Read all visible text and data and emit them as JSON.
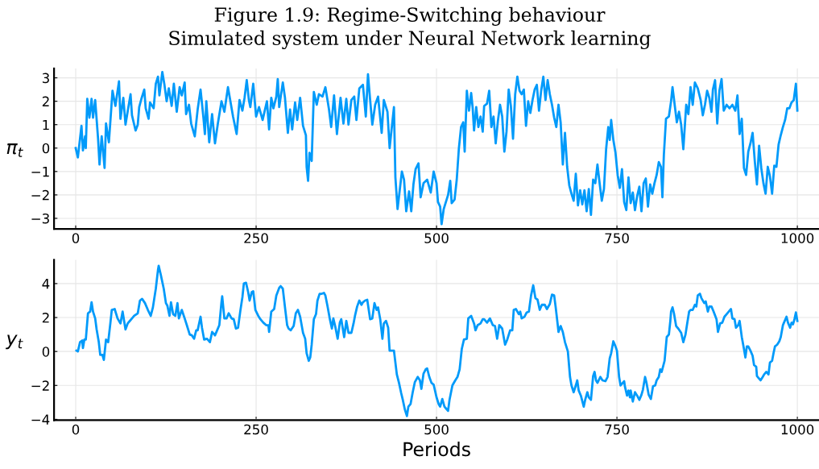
{
  "chart_data": [
    {
      "type": "line",
      "title": "Figure 1.9: Regime-Switching behaviour",
      "subtitle": "Simulated system under Neural Network learning",
      "ylabel": "π$_{t}$",
      "grid": true,
      "legend": false,
      "xlim": [
        -30,
        1030
      ],
      "xticks": [
        0,
        250,
        500,
        750,
        1000
      ],
      "ylim": [
        -3.45,
        3.4
      ],
      "yticks": [
        {
          "value": -3,
          "label": "−3"
        },
        {
          "value": -2,
          "label": "−2"
        },
        {
          "value": -1,
          "label": "−1"
        },
        0,
        1,
        2,
        3
      ],
      "series": [
        {
          "color": "#009afa",
          "x": [
            0,
            3,
            8,
            10,
            13,
            14,
            16,
            19,
            22,
            24,
            27,
            31,
            33,
            36,
            40,
            42,
            46,
            51,
            55,
            60,
            62,
            66,
            69,
            73,
            76,
            78,
            83,
            86,
            88,
            91,
            95,
            97,
            101,
            103,
            108,
            111,
            114,
            116,
            120,
            123,
            126,
            129,
            133,
            136,
            140,
            144,
            147,
            151,
            153,
            157,
            160,
            165,
            169,
            173,
            177,
            179,
            181,
            185,
            189,
            193,
            197,
            202,
            206,
            211,
            218,
            223,
            227,
            231,
            234,
            237,
            240,
            242,
            246,
            250,
            254,
            259,
            265,
            268,
            271,
            274,
            278,
            280,
            282,
            287,
            290,
            294,
            297,
            300,
            304,
            307,
            311,
            315,
            319,
            320,
            322,
            324,
            327,
            330,
            334,
            337,
            342,
            346,
            351,
            354,
            358,
            362,
            367,
            371,
            375,
            378,
            382,
            386,
            389,
            393,
            398,
            402,
            405,
            408,
            411,
            415,
            419,
            424,
            427,
            432,
            435,
            441,
            443,
            446,
            449,
            452,
            455,
            458,
            462,
            465,
            468,
            471,
            475,
            478,
            482,
            487,
            492,
            496,
            500,
            502,
            505,
            507,
            510,
            513,
            516,
            519,
            521,
            525,
            528,
            531,
            534,
            537,
            539,
            542,
            545,
            548,
            550,
            552,
            555,
            558,
            561,
            564,
            566,
            570,
            573,
            576,
            579,
            582,
            585,
            588,
            591,
            594,
            597,
            600,
            603,
            606,
            609,
            612,
            615,
            618,
            621,
            624,
            627,
            630,
            633,
            636,
            639,
            642,
            645,
            648,
            651,
            654,
            657,
            660,
            663,
            666,
            669,
            672,
            675,
            678,
            681,
            684,
            687,
            690,
            693,
            696,
            699,
            702,
            705,
            708,
            711,
            714,
            717,
            720,
            723,
            726,
            729,
            732,
            735,
            738,
            740,
            742,
            745,
            748,
            751,
            754,
            757,
            760,
            763,
            766,
            769,
            772,
            775,
            778,
            781,
            784,
            787,
            790,
            793,
            796,
            799,
            802,
            805,
            808,
            811,
            813,
            815,
            818,
            822,
            825,
            827,
            830,
            833,
            836,
            839,
            842,
            846,
            849,
            852,
            855,
            858,
            862,
            866,
            869,
            872,
            875,
            878,
            881,
            883,
            886,
            889,
            892,
            895,
            898,
            902,
            906,
            910,
            914,
            917,
            920,
            923,
            926,
            929,
            932,
            935,
            938,
            941,
            944,
            947,
            950,
            953,
            956,
            959,
            962,
            965,
            968,
            971,
            974,
            977,
            980,
            983,
            986,
            989,
            992,
            995,
            998,
            1000
          ],
          "values": [
            0.0,
            -0.4,
            0.95,
            -0.1,
            0.5,
            0.0,
            2.1,
            1.3,
            2.1,
            1.3,
            2.05,
            0.4,
            -0.7,
            0.5,
            -0.85,
            1.05,
            0.25,
            2.45,
            1.8,
            2.85,
            1.25,
            2.15,
            1.0,
            1.75,
            2.3,
            1.4,
            0.75,
            1.0,
            1.75,
            2.1,
            2.5,
            1.7,
            1.25,
            1.95,
            1.7,
            2.75,
            3.05,
            2.25,
            3.25,
            2.7,
            2.0,
            2.55,
            1.8,
            2.75,
            1.55,
            2.6,
            2.25,
            2.8,
            1.45,
            1.85,
            1.05,
            0.5,
            1.65,
            2.5,
            1.3,
            0.6,
            2.0,
            0.25,
            1.45,
            0.2,
            1.05,
            2.0,
            1.55,
            2.6,
            1.35,
            0.6,
            2.05,
            1.6,
            2.15,
            2.9,
            2.05,
            1.75,
            2.75,
            1.35,
            1.75,
            1.2,
            2.0,
            0.8,
            2.15,
            1.7,
            2.2,
            2.95,
            1.75,
            2.8,
            2.15,
            0.65,
            1.65,
            0.8,
            1.95,
            1.2,
            2.15,
            0.95,
            0.55,
            -0.8,
            -1.4,
            -0.2,
            -0.55,
            2.4,
            1.85,
            2.3,
            2.2,
            2.6,
            1.65,
            0.9,
            2.25,
            0.6,
            2.15,
            1.05,
            2.1,
            1.0,
            2.05,
            2.2,
            1.2,
            2.55,
            2.7,
            1.35,
            3.15,
            2.05,
            1.0,
            1.85,
            2.2,
            0.65,
            2.05,
            1.55,
            0.0,
            1.75,
            -1.25,
            -2.6,
            -1.8,
            -1.0,
            -1.35,
            -2.7,
            -1.85,
            -2.7,
            -1.55,
            -0.9,
            -0.65,
            -2.1,
            -1.5,
            -1.35,
            -1.9,
            -1.0,
            -1.5,
            -2.3,
            -2.5,
            -3.25,
            -2.6,
            -2.3,
            -2.0,
            -1.4,
            -2.35,
            -2.2,
            -1.35,
            0.0,
            0.9,
            1.1,
            -0.15,
            2.45,
            1.6,
            2.35,
            1.75,
            0.75,
            1.75,
            0.9,
            1.35,
            0.7,
            1.8,
            1.9,
            2.45,
            0.9,
            1.35,
            0.2,
            1.15,
            1.85,
            1.35,
            -0.15,
            0.7,
            2.5,
            1.8,
            0.4,
            2.3,
            3.05,
            2.45,
            2.3,
            2.5,
            0.95,
            2.0,
            1.5,
            2.05,
            2.5,
            2.7,
            1.6,
            2.45,
            3.05,
            2.05,
            2.9,
            2.3,
            1.85,
            1.3,
            0.9,
            1.85,
            1.1,
            -0.7,
            0.65,
            -0.8,
            -1.6,
            -1.95,
            -2.25,
            -1.1,
            -2.45,
            -1.8,
            -2.4,
            -1.8,
            -2.7,
            -1.75,
            -2.85,
            -1.35,
            -1.5,
            -0.7,
            -1.5,
            -2.25,
            -1.75,
            -0.05,
            0.9,
            0.35,
            1.2,
            0.35,
            -0.2,
            -1.15,
            -1.7,
            -0.9,
            -2.3,
            -2.65,
            -1.25,
            -2.35,
            -1.9,
            -2.65,
            -2.05,
            -1.65,
            -2.7,
            -1.5,
            -1.3,
            -2.5,
            -1.55,
            -1.95,
            -1.5,
            -1.15,
            -0.6,
            -0.8,
            -2.1,
            -0.3,
            1.25,
            1.35,
            2.0,
            2.6,
            1.85,
            1.1,
            1.55,
            1.0,
            -0.05,
            1.85,
            1.45,
            2.6,
            1.85,
            2.8,
            2.55,
            2.05,
            1.4,
            1.85,
            2.45,
            2.15,
            1.55,
            2.5,
            2.9,
            1.05,
            2.45,
            2.95,
            1.6,
            1.85,
            1.7,
            1.85,
            1.6,
            2.25,
            0.6,
            1.25,
            -0.85,
            -1.15,
            -0.15,
            0.2,
            0.65,
            -0.55,
            -1.55,
            0.1,
            -0.85,
            -1.5,
            -1.95,
            -0.8,
            -1.2,
            -1.95,
            -0.75,
            -0.8,
            0.15,
            0.55,
            0.9,
            1.2,
            1.7,
            1.7,
            1.95,
            2.05,
            2.75,
            1.6
          ]
        }
      ]
    },
    {
      "type": "line",
      "xlabel": "Periods",
      "ylabel": "y$_{t}$",
      "grid": true,
      "legend": false,
      "xlim": [
        -30,
        1030
      ],
      "xticks": [
        0,
        250,
        500,
        750,
        1000
      ],
      "ylim": [
        -4.05,
        5.4
      ],
      "yticks": [
        {
          "value": -4,
          "label": "−4"
        },
        {
          "value": -2,
          "label": "−2"
        },
        0,
        2,
        4
      ],
      "series": [
        {
          "color": "#009afa",
          "x": [
            1,
            3,
            6,
            9,
            10,
            12,
            14,
            17,
            20,
            22,
            24,
            27,
            29,
            32,
            34,
            37,
            39,
            42,
            45,
            48,
            50,
            54,
            58,
            62,
            65,
            69,
            72,
            75,
            78,
            81,
            86,
            89,
            92,
            96,
            100,
            104,
            107,
            111,
            114,
            115,
            118,
            122,
            125,
            127,
            130,
            132,
            135,
            138,
            141,
            143,
            147,
            151,
            154,
            158,
            161,
            164,
            167,
            169,
            173,
            175,
            178,
            182,
            186,
            189,
            193,
            196,
            199,
            202,
            203,
            206,
            209,
            212,
            216,
            219,
            222,
            225,
            228,
            231,
            233,
            236,
            239,
            241,
            244,
            246,
            249,
            253,
            256,
            260,
            264,
            267,
            268,
            271,
            275,
            278,
            282,
            284,
            287,
            290,
            293,
            295,
            298,
            302,
            305,
            308,
            311,
            315,
            318,
            320,
            323,
            325,
            327,
            330,
            333,
            335,
            338,
            341,
            344,
            346,
            349,
            352,
            355,
            357,
            360,
            363,
            366,
            368,
            372,
            375,
            378,
            382,
            385,
            387,
            390,
            393,
            396,
            398,
            401,
            404,
            408,
            411,
            414,
            417,
            419,
            422,
            425,
            427,
            430,
            433,
            435,
            438,
            441,
            445,
            448,
            451,
            453,
            456,
            459,
            461,
            464,
            467,
            470,
            474,
            477,
            479,
            482,
            485,
            487,
            490,
            493,
            496,
            500,
            503,
            505,
            508,
            511,
            513,
            516,
            518,
            522,
            526,
            529,
            532,
            535,
            538,
            542,
            544,
            548,
            552,
            554,
            557,
            561,
            564,
            566,
            570,
            574,
            578,
            581,
            584,
            587,
            591,
            595,
            598,
            602,
            605,
            607,
            610,
            612,
            614,
            616,
            618,
            622,
            625,
            628,
            631,
            634,
            637,
            640,
            643,
            646,
            650,
            653,
            657,
            660,
            663,
            665,
            668,
            669,
            672,
            675,
            678,
            682,
            685,
            687,
            690,
            693,
            695,
            697,
            700,
            704,
            706,
            709,
            711,
            714,
            717,
            719,
            721,
            723,
            727,
            730,
            734,
            737,
            740,
            742,
            745,
            748,
            750,
            753,
            755,
            758,
            760,
            761,
            764,
            766,
            768,
            769,
            772,
            775,
            778,
            781,
            784,
            786,
            789,
            791,
            794,
            797,
            800,
            803,
            805,
            808,
            810,
            812,
            816,
            819,
            822,
            824,
            825,
            827,
            829,
            832,
            835,
            839,
            842,
            845,
            847,
            850,
            852,
            855,
            858,
            860,
            862,
            865,
            867,
            871,
            873,
            876,
            878,
            881,
            884,
            888,
            890,
            893,
            896,
            899,
            902,
            905,
            908,
            910,
            913,
            915,
            918,
            920,
            923,
            926,
            928,
            930,
            932,
            935,
            938,
            940,
            943,
            944,
            947,
            949,
            952,
            954,
            957,
            960,
            962,
            965,
            967,
            969,
            972,
            975,
            977,
            980,
            981,
            985,
            987,
            990,
            992,
            994,
            996,
            998,
            1000
          ],
          "values": [
            0.05,
            0.0,
            0.55,
            0.65,
            0.2,
            0.7,
            0.7,
            2.25,
            2.35,
            2.9,
            2.35,
            1.95,
            1.3,
            0.55,
            -0.2,
            -0.2,
            -0.5,
            0.7,
            0.55,
            1.65,
            2.45,
            2.5,
            1.95,
            1.65,
            2.35,
            1.3,
            1.65,
            1.8,
            1.95,
            2.1,
            2.25,
            3.0,
            3.1,
            2.85,
            2.45,
            2.1,
            2.6,
            3.7,
            4.8,
            5.05,
            4.5,
            3.7,
            2.85,
            2.7,
            2.1,
            2.9,
            2.2,
            2.1,
            2.85,
            1.95,
            2.45,
            1.95,
            1.55,
            1.0,
            0.95,
            0.75,
            1.25,
            1.25,
            2.05,
            1.4,
            0.7,
            0.75,
            0.55,
            1.15,
            0.95,
            1.25,
            1.55,
            2.9,
            3.25,
            1.95,
            1.95,
            2.25,
            1.95,
            1.9,
            1.35,
            1.4,
            2.35,
            3.2,
            4.0,
            4.05,
            3.5,
            3.0,
            3.5,
            3.55,
            2.45,
            2.1,
            1.9,
            1.7,
            1.55,
            1.55,
            1.15,
            2.35,
            2.5,
            3.3,
            3.75,
            3.85,
            3.7,
            2.6,
            1.55,
            1.35,
            1.25,
            1.5,
            2.25,
            2.45,
            2.05,
            1.1,
            0.75,
            -0.1,
            -0.55,
            -0.35,
            0.4,
            1.9,
            2.2,
            3.0,
            3.4,
            3.4,
            3.45,
            3.3,
            2.65,
            1.95,
            1.35,
            1.95,
            1.4,
            0.75,
            1.7,
            1.9,
            0.85,
            1.8,
            1.1,
            1.1,
            1.65,
            2.1,
            2.65,
            3.0,
            2.75,
            2.9,
            3.0,
            3.05,
            1.9,
            1.95,
            2.85,
            2.45,
            2.6,
            1.9,
            0.75,
            1.65,
            1.8,
            1.4,
            0.05,
            0.05,
            0.05,
            -1.35,
            -1.85,
            -2.45,
            -2.8,
            -3.4,
            -3.8,
            -3.25,
            -3.1,
            -2.4,
            -1.8,
            -1.5,
            -1.7,
            -2.2,
            -1.3,
            -1.05,
            -1.0,
            -1.5,
            -1.85,
            -1.95,
            -2.7,
            -3.1,
            -3.25,
            -2.8,
            -3.25,
            -3.35,
            -3.5,
            -2.85,
            -2.0,
            -1.7,
            -1.5,
            -1.05,
            0.15,
            0.7,
            0.75,
            1.95,
            2.1,
            1.65,
            1.25,
            1.55,
            1.65,
            1.9,
            1.9,
            1.7,
            1.95,
            1.55,
            1.5,
            0.75,
            1.55,
            1.35,
            0.4,
            0.7,
            1.25,
            1.25,
            2.45,
            2.5,
            2.35,
            2.2,
            2.35,
            1.95,
            2.05,
            2.3,
            2.35,
            3.3,
            3.9,
            3.15,
            3.05,
            2.45,
            2.75,
            2.75,
            2.5,
            2.8,
            3.35,
            3.3,
            2.65,
            1.55,
            1.15,
            1.5,
            1.15,
            0.55,
            0.0,
            -1.5,
            -2.0,
            -2.4,
            -2.0,
            -1.7,
            -2.3,
            -2.6,
            -3.25,
            -2.85,
            -2.4,
            -2.7,
            -2.85,
            -1.45,
            -1.2,
            -1.7,
            -1.85,
            -1.5,
            -1.7,
            -1.75,
            -1.5,
            -0.4,
            -0.1,
            0.6,
            0.3,
            0.05,
            -1.5,
            -2.0,
            -1.85,
            -1.75,
            -2.05,
            -2.6,
            -2.3,
            -2.7,
            -2.3,
            -2.95,
            -2.4,
            -2.6,
            -2.85,
            -2.55,
            -2.25,
            -1.5,
            -1.85,
            -2.55,
            -2.8,
            -2.05,
            -2.0,
            -1.7,
            -1.5,
            -1.05,
            -1.2,
            -0.55,
            0.85,
            1.0,
            1.8,
            2.35,
            2.6,
            2.25,
            1.5,
            1.35,
            1.1,
            0.55,
            1.0,
            1.55,
            2.35,
            2.45,
            2.45,
            2.75,
            2.65,
            3.3,
            3.4,
            3.15,
            2.85,
            2.95,
            2.35,
            2.65,
            2.65,
            2.35,
            1.9,
            1.15,
            1.65,
            1.7,
            2.05,
            2.2,
            2.35,
            2.5,
            1.95,
            1.9,
            1.4,
            1.55,
            1.8,
            0.85,
            0.15,
            -0.35,
            0.3,
            0.3,
            0.05,
            -0.25,
            -0.8,
            -0.9,
            -1.45,
            -1.6,
            -1.7,
            -1.5,
            -1.35,
            -1.2,
            -1.35,
            -0.65,
            -0.55,
            -0.1,
            0.3,
            0.4,
            0.6,
            0.85,
            1.55,
            1.65,
            2.05,
            1.7,
            1.4,
            1.7,
            1.6,
            1.9,
            2.3,
            1.8
          ]
        }
      ]
    }
  ]
}
